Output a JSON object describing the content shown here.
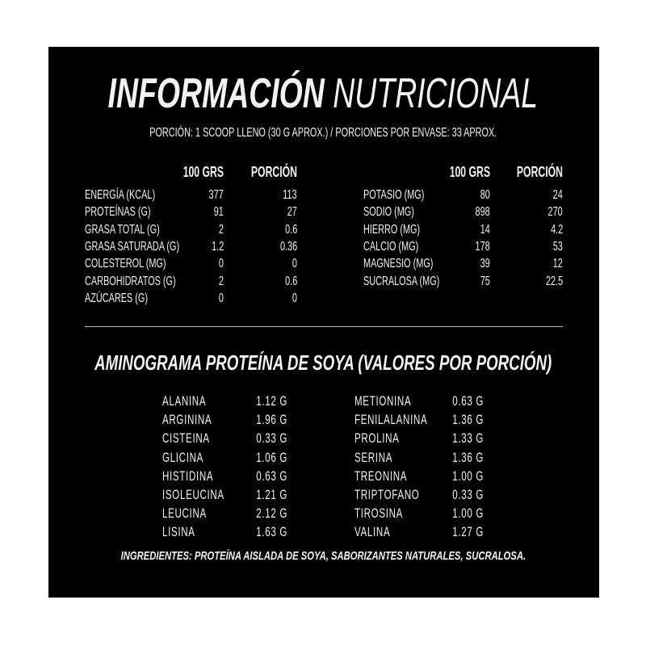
{
  "title": {
    "bold": "INFORMACIÓN",
    "light": "NUTRICIONAL"
  },
  "serving": "PORCIÓN: 1 SCOOP LLENO (30 G APROX.) / PORCIONES POR ENVASE: 33 APROX.",
  "nutrition_left": {
    "headers": [
      "100 GRS",
      "PORCIÓN"
    ],
    "rows": [
      {
        "label": "ENERGÍA (KCAL)",
        "per100": "377",
        "portion": "113"
      },
      {
        "label": "PROTEÍNAS (G)",
        "per100": "91",
        "portion": "27"
      },
      {
        "label": "GRASA TOTAL (G)",
        "per100": "2",
        "portion": "0.6"
      },
      {
        "label": "GRASA SATURADA (G)",
        "per100": "1.2",
        "portion": "0.36"
      },
      {
        "label": "COLESTEROL (MG)",
        "per100": "0",
        "portion": "0"
      },
      {
        "label": "CARBOHIDRATOS (G)",
        "per100": "2",
        "portion": "0.6"
      },
      {
        "label": "AZÚCARES (G)",
        "per100": "0",
        "portion": "0"
      }
    ]
  },
  "nutrition_right": {
    "headers": [
      "100 GRS",
      "PORCIÓN"
    ],
    "rows": [
      {
        "label": "POTASIO (MG)",
        "per100": "80",
        "portion": "24"
      },
      {
        "label": "SODIO (MG)",
        "per100": "898",
        "portion": "270"
      },
      {
        "label": "HIERRO (MG)",
        "per100": "14",
        "portion": "4.2"
      },
      {
        "label": "CALCIO (MG)",
        "per100": "178",
        "portion": "53"
      },
      {
        "label": "MAGNESIO (MG)",
        "per100": "39",
        "portion": "12"
      },
      {
        "label": "SUCRALOSA (MG)",
        "per100": "75",
        "portion": "22.5"
      }
    ]
  },
  "aminogram": {
    "title": "AMINOGRAMA PROTEÍNA DE SOYA (VALORES POR PORCIÓN)",
    "left": [
      {
        "name": "ALANINA",
        "value": "1.12 G"
      },
      {
        "name": "ARGININA",
        "value": "1.96 G"
      },
      {
        "name": "CISTEINA",
        "value": "0.33 G"
      },
      {
        "name": "GLICINA",
        "value": "1.06 G"
      },
      {
        "name": "HISTIDINA",
        "value": "0.63 G"
      },
      {
        "name": "ISOLEUCINA",
        "value": "1.21 G"
      },
      {
        "name": "LEUCINA",
        "value": "2.12 G"
      },
      {
        "name": "LISINA",
        "value": "1.63 G"
      }
    ],
    "right": [
      {
        "name": "METIONINA",
        "value": "0.63 G"
      },
      {
        "name": "FENILALANINA",
        "value": "1.36 G"
      },
      {
        "name": "PROLINA",
        "value": "1.33 G"
      },
      {
        "name": "SERINA",
        "value": "1.36 G"
      },
      {
        "name": "TREONINA",
        "value": "1.00 G"
      },
      {
        "name": "TRIPTOFANO",
        "value": "0.33 G"
      },
      {
        "name": "TIROSINA",
        "value": "1.00 G"
      },
      {
        "name": "VALINA",
        "value": "1.27 G"
      }
    ]
  },
  "ingredients": "INGREDIENTES: PROTEÍNA AISLADA DE SOYA, SABORIZANTES NATURALES, SUCRALOSA.",
  "colors": {
    "background": "#000000",
    "text": "#f2f2f2"
  }
}
